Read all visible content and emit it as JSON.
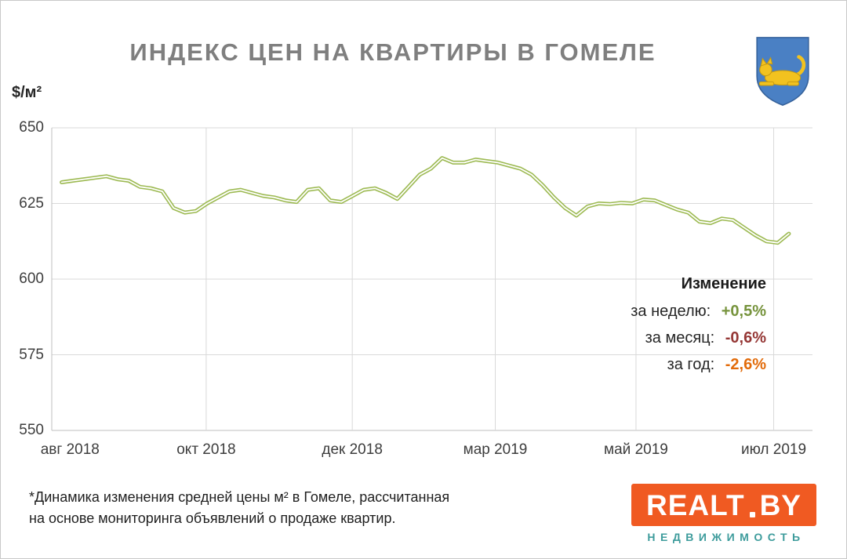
{
  "header": {
    "title": "ИНДЕКС ЦЕН НА КВАРТИРЫ В ГОМЕЛЕ",
    "unit_label": "$/м²"
  },
  "chart_data": {
    "type": "line",
    "title": "ИНДЕКС ЦЕН НА КВАРТИРЫ В ГОМЕЛЕ",
    "ylabel": "$/м²",
    "ylim": [
      550,
      650
    ],
    "yticks": [
      650,
      625,
      600,
      575,
      550
    ],
    "xticks": [
      {
        "label": "авг 2018",
        "pos": 0.024,
        "grid": false
      },
      {
        "label": "окт 2018",
        "pos": 0.203,
        "grid": true
      },
      {
        "label": "дек 2018",
        "pos": 0.395,
        "grid": true
      },
      {
        "label": "мар 2019",
        "pos": 0.583,
        "grid": true
      },
      {
        "label": "май 2019",
        "pos": 0.768,
        "grid": true
      },
      {
        "label": "июл 2019",
        "pos": 0.949,
        "grid": true
      }
    ],
    "x_range": [
      0.013,
      0.969
    ],
    "grid": true,
    "legend_position": "none",
    "grid_color": "#d9d9d9",
    "axis_color": "#bfbfbf",
    "series": [
      {
        "color": "#9dba53",
        "core_color": "#ffffff",
        "values": [
          632,
          632.5,
          633,
          633.5,
          634,
          633,
          632.5,
          630.5,
          630,
          629,
          623.5,
          622,
          622.5,
          625,
          627,
          629,
          629.5,
          628.5,
          627.5,
          627,
          626,
          625.5,
          629.5,
          630,
          626,
          625.5,
          627.5,
          629.5,
          630,
          628.5,
          626.5,
          630.5,
          634.5,
          636.5,
          640,
          638.5,
          638.5,
          639.5,
          639,
          638.5,
          637.5,
          636.5,
          634.5,
          631,
          627,
          623.5,
          621,
          624,
          625,
          624.8,
          625.2,
          625,
          626.3,
          626,
          624.5,
          623,
          622,
          619,
          618.5,
          620,
          619.5,
          617,
          614.5,
          612.5,
          612,
          615
        ]
      }
    ]
  },
  "annotation": {
    "title": "Изменение",
    "rows": [
      {
        "label": "за неделю:",
        "value": "+0,5%",
        "color": "#76933c"
      },
      {
        "label": "за месяц:",
        "value": "-0,6%",
        "color": "#953735"
      },
      {
        "label": "за год:",
        "value": "-2,6%",
        "color": "#e26b0a"
      }
    ]
  },
  "footnote": {
    "line1": "*Динамика  изменения  средней цены м²  в Гомеле, рассчитанная",
    "line2": "на основе мониторинга  объявлений  о продаже квартир."
  },
  "logo": {
    "brand": "REALT",
    "brand_suffix": "BY",
    "tagline": "НЕДВИЖИМОСТЬ",
    "bg_color": "#f05a22",
    "tagline_color": "#3e9c9c"
  },
  "emblem": {
    "shield_color": "#4a80c4",
    "figure_color": "#f2c21f"
  }
}
